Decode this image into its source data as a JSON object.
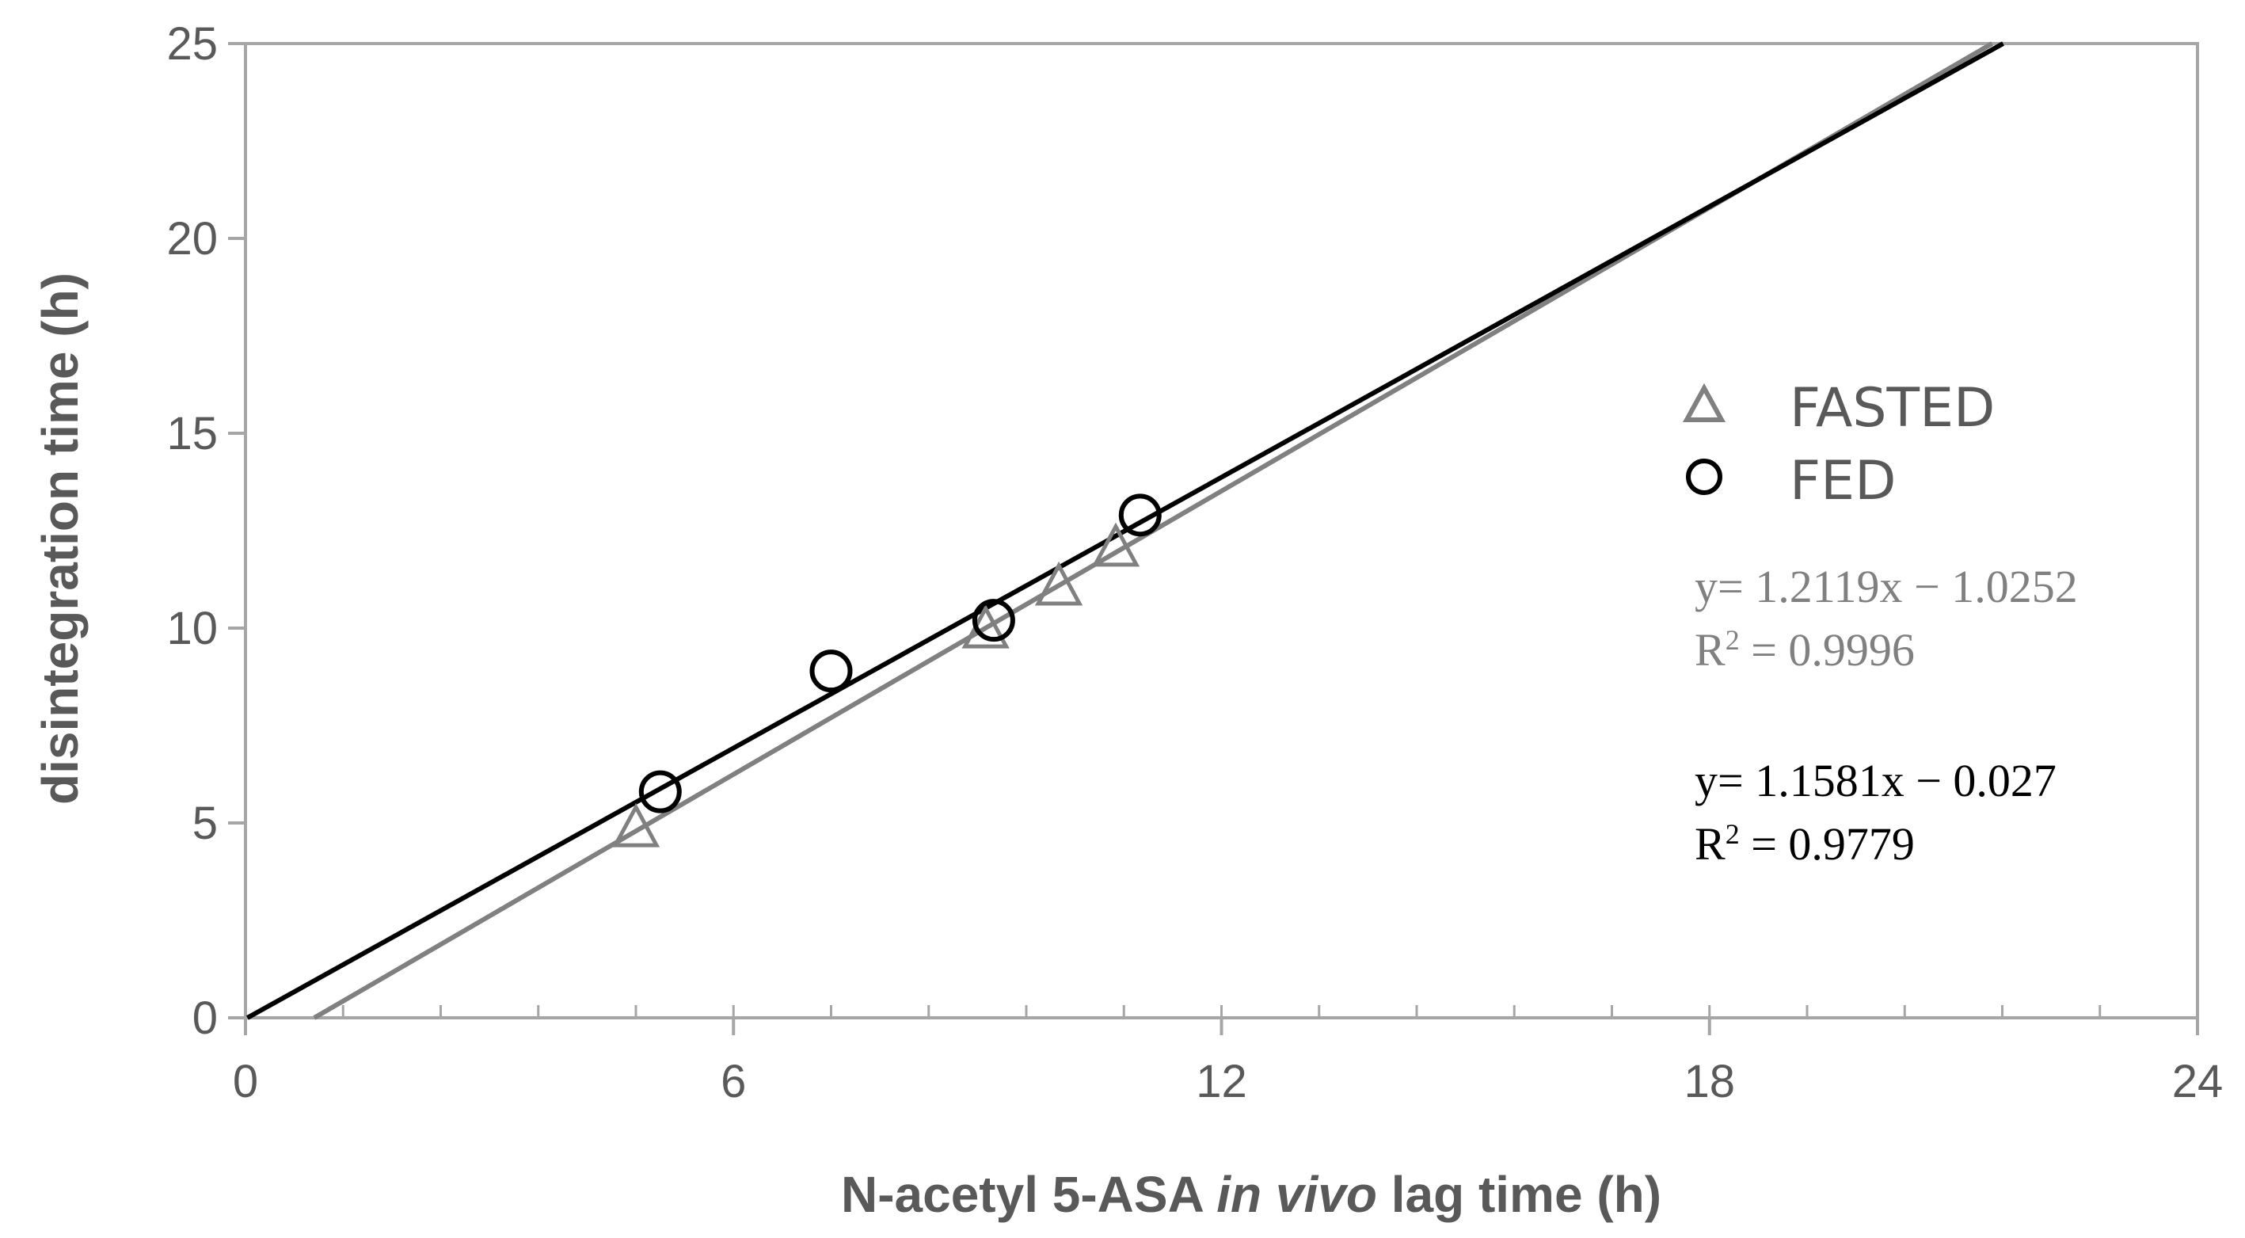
{
  "chart_data": {
    "type": "scatter",
    "title": "",
    "xlabel": {
      "prefix": "N-acetyl 5-ASA ",
      "italic": "in vivo",
      "suffix": " lag time (h)"
    },
    "ylabel": "disintegration time (h)",
    "xlim": [
      0,
      24
    ],
    "ylim": [
      0,
      25
    ],
    "x_ticks": [
      "0",
      "6",
      "12",
      "18",
      "24"
    ],
    "x_minor_step": 1.2,
    "y_ticks": [
      "0",
      "5",
      "10",
      "15",
      "20",
      "25"
    ],
    "legend_position": "right",
    "series": [
      {
        "name": "FASTED",
        "marker": "triangle",
        "color": "#808080",
        "x": [
          4.8,
          9.1,
          10.0,
          10.7
        ],
        "y": [
          4.8,
          9.9,
          11.0,
          12.0
        ],
        "fit": {
          "slope": 1.2119,
          "intercept": -1.0252
        },
        "equation": "y= 1.2119x − 1.0252",
        "r2_label": "R",
        "r2_sup": "2",
        "r2_value": " = 0.9996"
      },
      {
        "name": "FED",
        "marker": "circle",
        "color": "#000000",
        "x": [
          5.1,
          7.2,
          9.2,
          11.0
        ],
        "y": [
          5.8,
          8.9,
          10.2,
          12.9
        ],
        "fit": {
          "slope": 1.1581,
          "intercept": -0.027
        },
        "equation": "y= 1.1581x − 0.027",
        "r2_label": "R",
        "r2_sup": "2",
        "r2_value": " = 0.9779"
      }
    ]
  }
}
